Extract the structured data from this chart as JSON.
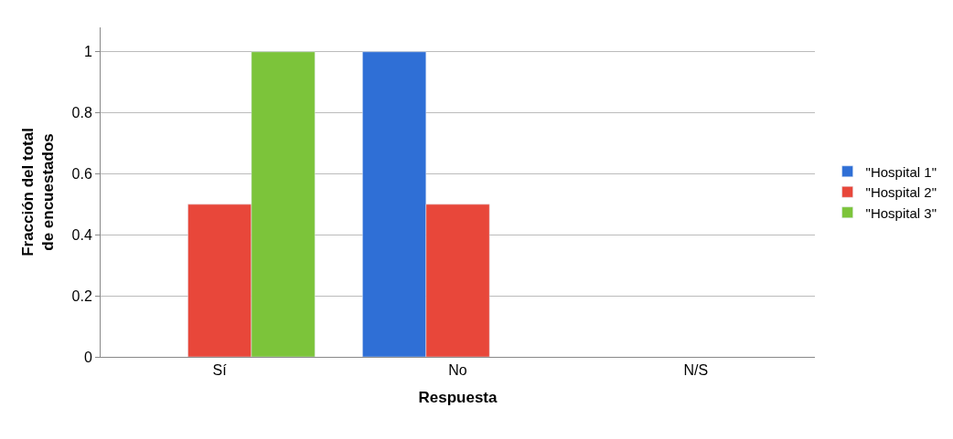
{
  "chart_data": {
    "type": "bar",
    "xlabel": "Respuesta",
    "ylabel": "Fracción del total de encuestados",
    "categories": [
      "Sí",
      "No",
      "N/S"
    ],
    "series": [
      {
        "name": "\"Hospital 1\"",
        "color": "#2f6fd6",
        "values": [
          null,
          1,
          null
        ]
      },
      {
        "name": "\"Hospital 2\"",
        "color": "#e8473a",
        "values": [
          0.5,
          0.5,
          null
        ]
      },
      {
        "name": "\"Hospital 3\"",
        "color": "#7cc43a",
        "values": [
          1,
          null,
          null
        ]
      }
    ],
    "ylim": [
      0,
      1.08
    ],
    "yticks": [
      0,
      0.2,
      0.4,
      0.6,
      0.8,
      1
    ],
    "grid": "y",
    "legend": "right"
  }
}
